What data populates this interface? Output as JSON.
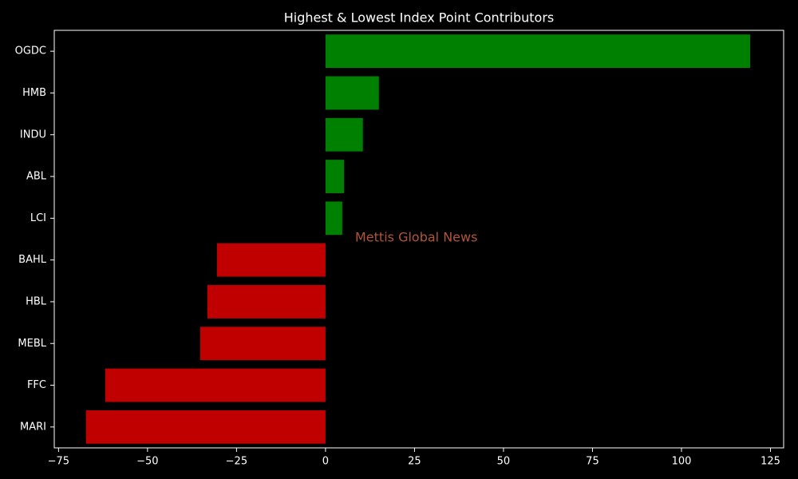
{
  "chart_data": {
    "type": "barh",
    "title": "Highest & Lowest Index Point Contributors",
    "categories": [
      "OGDC",
      "HMB",
      "INDU",
      "ABL",
      "LCI",
      "BAHL",
      "HBL",
      "MEBL",
      "FFC",
      "MARI"
    ],
    "values": [
      119.3,
      15.0,
      10.5,
      5.2,
      4.7,
      -30.5,
      -33.2,
      -35.2,
      -61.9,
      -67.3
    ],
    "positive_color": "#008000",
    "negative_color": "#c00000",
    "xlim": [
      -76.2,
      128.7
    ],
    "xticks": [
      {
        "value": -75,
        "label": "−75"
      },
      {
        "value": -50,
        "label": "−50"
      },
      {
        "value": -25,
        "label": "−25"
      },
      0,
      25,
      50,
      75,
      100,
      125
    ],
    "annotation": "Mettis Global News",
    "annotation_color": "#b0553a"
  }
}
